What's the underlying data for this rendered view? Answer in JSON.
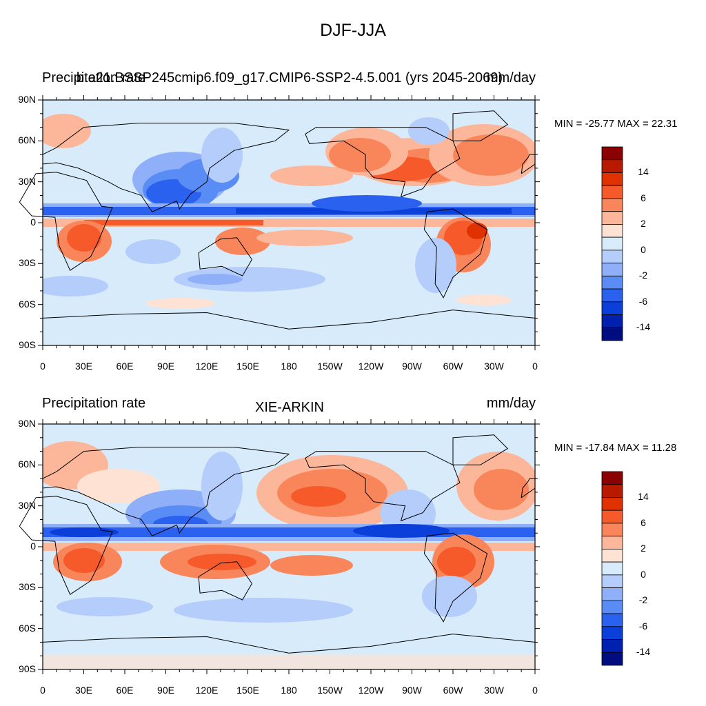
{
  "title": "DJF-JJA",
  "panels": [
    {
      "left_title": "Precipitation rate",
      "center_title": "b.e21.BSSP245cmip6.f09_g17.CMIP6-SSP2-4.5.001 (yrs 2045-2069)",
      "right_title": "mm/day",
      "minmax": "MIN = -25.77 MAX =  22.31"
    },
    {
      "left_title": "Precipitation rate",
      "center_title": "XIE-ARKIN",
      "right_title": "mm/day",
      "minmax": "MIN = -17.84 MAX =  11.28"
    }
  ],
  "axes": {
    "x_ticks": [
      "0",
      "30E",
      "60E",
      "90E",
      "120E",
      "150E",
      "180",
      "150W",
      "120W",
      "90W",
      "60W",
      "30W",
      "0"
    ],
    "y_ticks": [
      "90N",
      "60N",
      "30N",
      "0",
      "30S",
      "60S",
      "90S"
    ]
  },
  "colorbar": {
    "labels": [
      "14",
      "6",
      "2",
      "0",
      "-2",
      "-6",
      "-14"
    ],
    "colors": [
      "#8b0000",
      "#b81a00",
      "#e03200",
      "#f65a2a",
      "#f9865a",
      "#fcb79b",
      "#fee2d4",
      "#d8ebfb",
      "#b4cdfa",
      "#8fb0f9",
      "#5a8cf5",
      "#2a61ef",
      "#0a3fd9",
      "#0020b0",
      "#000d80"
    ]
  }
}
